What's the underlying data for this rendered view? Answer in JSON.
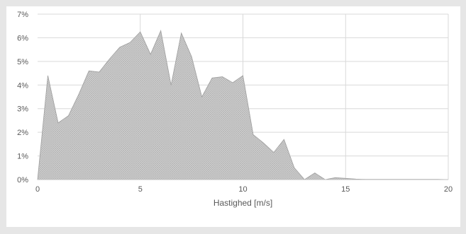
{
  "chart_data": {
    "type": "area",
    "xlabel": "Hastighed [m/s]",
    "ylabel": "",
    "xlim": [
      0,
      20
    ],
    "ylim": [
      0,
      0.07
    ],
    "x_ticks": [
      0,
      5,
      10,
      15,
      20
    ],
    "y_ticks": [
      0,
      0.01,
      0.02,
      0.03,
      0.04,
      0.05,
      0.06,
      0.07
    ],
    "x_tick_labels": [
      "0",
      "5",
      "10",
      "15",
      "20"
    ],
    "y_tick_labels": [
      "0%",
      "1%",
      "2%",
      "3%",
      "4%",
      "5%",
      "6%",
      "7%"
    ],
    "grid": true,
    "legend": "none",
    "series": [
      {
        "fill_color": "#c8c8c8",
        "line_color": "#9e9e9e",
        "x": [
          0,
          0.5,
          1,
          1.5,
          2,
          2.5,
          3,
          3.5,
          4,
          4.5,
          5,
          5.5,
          6,
          6.5,
          7,
          7.5,
          8,
          8.5,
          9,
          9.5,
          10,
          10.5,
          11,
          11.5,
          12,
          12.5,
          13,
          13.5,
          14,
          14.5,
          15,
          15.5,
          16,
          16.5,
          17,
          17.5,
          18,
          18.5,
          19,
          19.5,
          20
        ],
        "values": [
          0.0,
          0.044,
          0.024,
          0.027,
          0.036,
          0.046,
          0.0455,
          0.051,
          0.056,
          0.058,
          0.0625,
          0.053,
          0.063,
          0.04,
          0.062,
          0.052,
          0.035,
          0.043,
          0.0435,
          0.041,
          0.044,
          0.019,
          0.0155,
          0.0115,
          0.017,
          0.005,
          0.0,
          0.0028,
          0.0,
          0.0008,
          0.0005,
          0.0002,
          0.0001,
          0.0001,
          0.0001,
          0.0001,
          0.0001,
          0.0001,
          0.0001,
          0.0001,
          0.0
        ]
      }
    ]
  }
}
